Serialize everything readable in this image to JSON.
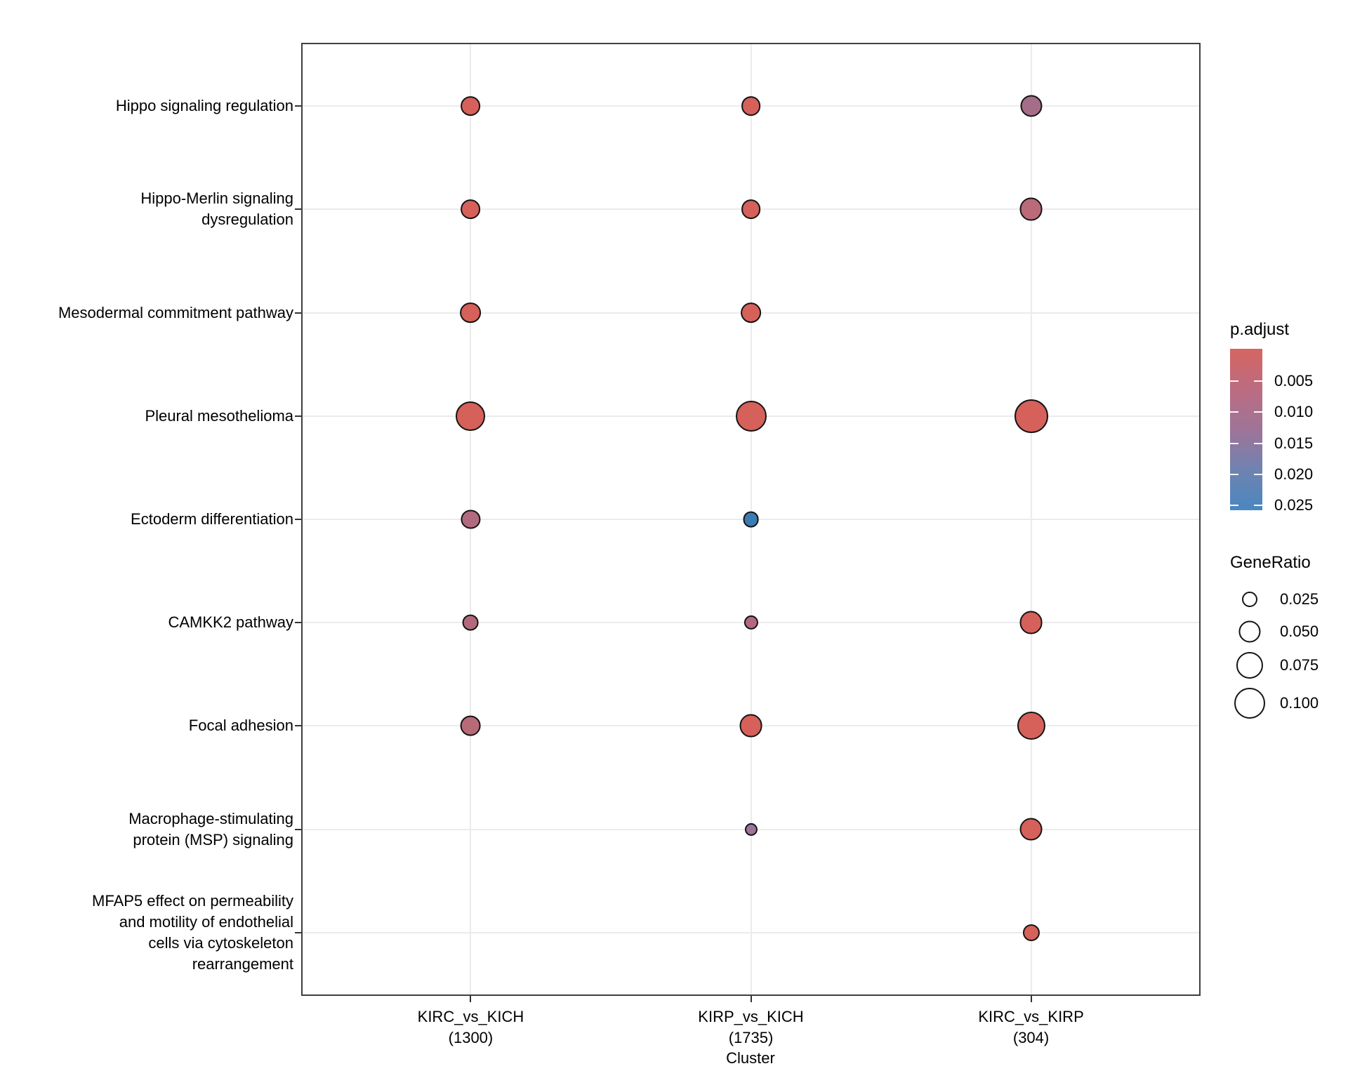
{
  "figure": {
    "background": "#ffffff",
    "panel_border_color": "#3f3f3f",
    "gridline_color": "#ebebeb"
  },
  "chart_data": {
    "type": "scatter",
    "subtype": "dotplot-enrichment",
    "title": "",
    "xlabel": "Cluster",
    "ylabel": "",
    "grid": "on",
    "x_categories": [
      {
        "label": "KIRC_vs_KICH",
        "count_label": "(1300)"
      },
      {
        "label": "KIRP_vs_KICH",
        "count_label": "(1735)"
      },
      {
        "label": "KIRC_vs_KIRP",
        "count_label": "(304)"
      }
    ],
    "y_categories": [
      "Hippo signaling regulation",
      "Hippo-Merlin signaling\ndysregulation",
      "Mesodermal commitment pathway",
      "Pleural mesothelioma",
      "Ectoderm differentiation",
      "CAMKK2 pathway",
      "Focal adhesion",
      "Macrophage-stimulating\nprotein (MSP) signaling",
      "MFAP5 effect on permeability\nand motility of endothelial\ncells via cytoskeleton\nrearrangement"
    ],
    "points": [
      {
        "col": 0,
        "row": 0,
        "cluster": "KIRC_vs_KICH",
        "pathway": "Hippo signaling regulation",
        "gene_ratio": 0.04,
        "p_adjust": 0.003,
        "color": "#d6605a"
      },
      {
        "col": 1,
        "row": 0,
        "cluster": "KIRP_vs_KICH",
        "pathway": "Hippo signaling regulation",
        "gene_ratio": 0.04,
        "p_adjust": 0.003,
        "color": "#d6605a"
      },
      {
        "col": 2,
        "row": 0,
        "cluster": "KIRC_vs_KIRP",
        "pathway": "Hippo signaling regulation",
        "gene_ratio": 0.05,
        "p_adjust": 0.013,
        "color": "#a56d88"
      },
      {
        "col": 0,
        "row": 1,
        "cluster": "KIRC_vs_KICH",
        "pathway": "Hippo-Merlin signaling dysregulation",
        "gene_ratio": 0.04,
        "p_adjust": 0.003,
        "color": "#d6605a"
      },
      {
        "col": 1,
        "row": 1,
        "cluster": "KIRP_vs_KICH",
        "pathway": "Hippo-Merlin signaling dysregulation",
        "gene_ratio": 0.04,
        "p_adjust": 0.003,
        "color": "#d6605a"
      },
      {
        "col": 2,
        "row": 1,
        "cluster": "KIRC_vs_KIRP",
        "pathway": "Hippo-Merlin signaling dysregulation",
        "gene_ratio": 0.056,
        "p_adjust": 0.009,
        "color": "#bb6a79"
      },
      {
        "col": 0,
        "row": 2,
        "cluster": "KIRC_vs_KICH",
        "pathway": "Mesodermal commitment pathway",
        "gene_ratio": 0.046,
        "p_adjust": 0.003,
        "color": "#d6605a"
      },
      {
        "col": 1,
        "row": 2,
        "cluster": "KIRP_vs_KICH",
        "pathway": "Mesodermal commitment pathway",
        "gene_ratio": 0.046,
        "p_adjust": 0.003,
        "color": "#d6605a"
      },
      {
        "col": 0,
        "row": 3,
        "cluster": "KIRC_vs_KICH",
        "pathway": "Pleural mesothelioma",
        "gene_ratio": 0.091,
        "p_adjust": 0.002,
        "color": "#d6605a"
      },
      {
        "col": 1,
        "row": 3,
        "cluster": "KIRP_vs_KICH",
        "pathway": "Pleural mesothelioma",
        "gene_ratio": 0.1,
        "p_adjust": 0.002,
        "color": "#d6605a"
      },
      {
        "col": 2,
        "row": 3,
        "cluster": "KIRC_vs_KIRP",
        "pathway": "Pleural mesothelioma",
        "gene_ratio": 0.119,
        "p_adjust": 0.002,
        "color": "#d6605a"
      },
      {
        "col": 0,
        "row": 4,
        "cluster": "KIRC_vs_KICH",
        "pathway": "Ectoderm differentiation",
        "gene_ratio": 0.038,
        "p_adjust": 0.011,
        "color": "#b26a80"
      },
      {
        "col": 1,
        "row": 4,
        "cluster": "KIRP_vs_KICH",
        "pathway": "Ectoderm differentiation",
        "gene_ratio": 0.027,
        "p_adjust": 0.026,
        "color": "#3a7cb4"
      },
      {
        "col": 0,
        "row": 5,
        "cluster": "KIRC_vs_KICH",
        "pathway": "CAMKK2 pathway",
        "gene_ratio": 0.027,
        "p_adjust": 0.01,
        "color": "#b4687e"
      },
      {
        "col": 1,
        "row": 5,
        "cluster": "KIRP_vs_KICH",
        "pathway": "CAMKK2 pathway",
        "gene_ratio": 0.021,
        "p_adjust": 0.01,
        "color": "#b4687e"
      },
      {
        "col": 2,
        "row": 5,
        "cluster": "KIRC_vs_KIRP",
        "pathway": "CAMKK2 pathway",
        "gene_ratio": 0.056,
        "p_adjust": 0.003,
        "color": "#d6605a"
      },
      {
        "col": 0,
        "row": 6,
        "cluster": "KIRC_vs_KICH",
        "pathway": "Focal adhesion",
        "gene_ratio": 0.043,
        "p_adjust": 0.009,
        "color": "#b96a79"
      },
      {
        "col": 1,
        "row": 6,
        "cluster": "KIRP_vs_KICH",
        "pathway": "Focal adhesion",
        "gene_ratio": 0.056,
        "p_adjust": 0.003,
        "color": "#d6605a"
      },
      {
        "col": 2,
        "row": 6,
        "cluster": "KIRC_vs_KIRP",
        "pathway": "Focal adhesion",
        "gene_ratio": 0.083,
        "p_adjust": 0.002,
        "color": "#d6605a"
      },
      {
        "col": 1,
        "row": 7,
        "cluster": "KIRP_vs_KICH",
        "pathway": "Macrophage-stimulating protein (MSP) signaling",
        "gene_ratio": 0.017,
        "p_adjust": 0.017,
        "color": "#9e7498"
      },
      {
        "col": 2,
        "row": 7,
        "cluster": "KIRC_vs_KIRP",
        "pathway": "Macrophage-stimulating protein (MSP) signaling",
        "gene_ratio": 0.056,
        "p_adjust": 0.003,
        "color": "#d6605a"
      },
      {
        "col": 2,
        "row": 8,
        "cluster": "KIRC_vs_KIRP",
        "pathway": "MFAP5 effect on permeability and motility of endothelial cells via cytoskeleton rearrangement",
        "gene_ratio": 0.03,
        "p_adjust": 0.003,
        "color": "#d6605a"
      }
    ],
    "p_adjust_legend": {
      "title": "p.adjust",
      "ticks": [
        "0.005",
        "0.010",
        "0.015",
        "0.020",
        "0.025"
      ],
      "gradient": [
        "#d66561",
        "#bc6c81",
        "#9f7498",
        "#6f83b0",
        "#4a87c0"
      ]
    },
    "size_legend": {
      "title": "GeneRatio",
      "items": [
        {
          "label": "0.025",
          "value": 0.025
        },
        {
          "label": "0.050",
          "value": 0.05
        },
        {
          "label": "0.075",
          "value": 0.075
        },
        {
          "label": "0.100",
          "value": 0.1
        }
      ]
    }
  }
}
